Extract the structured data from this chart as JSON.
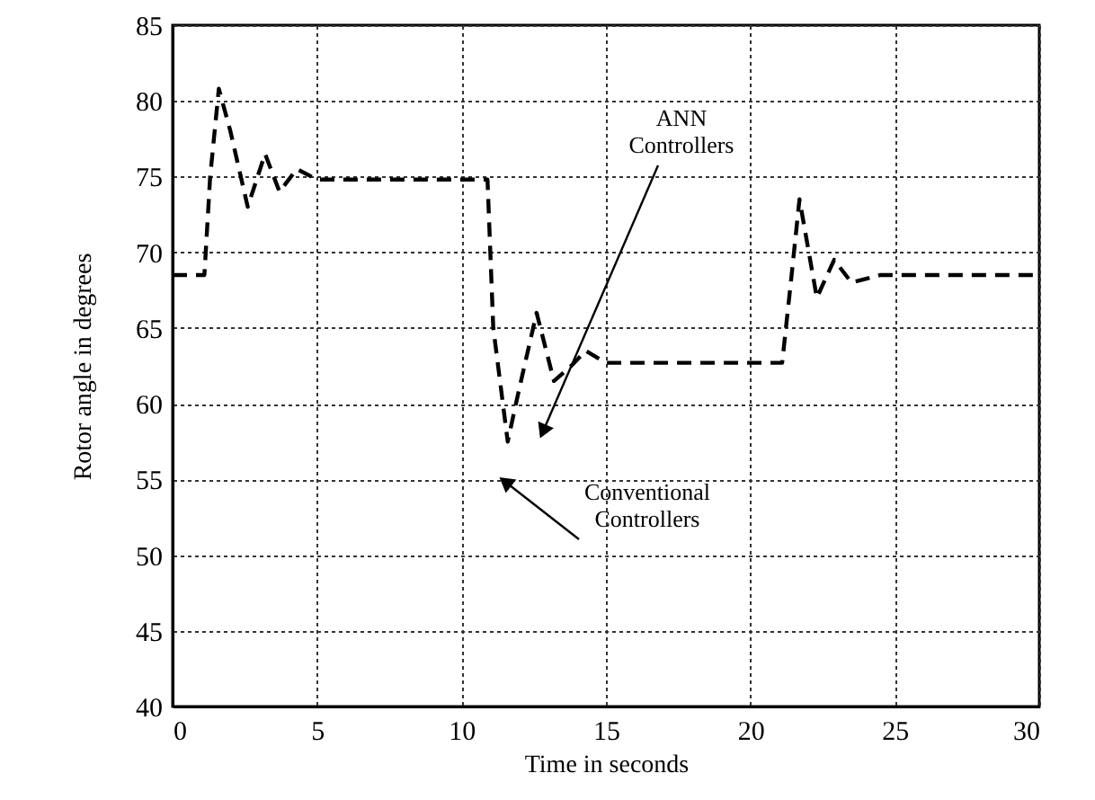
{
  "chart_data": {
    "type": "line",
    "xlabel": "Time in seconds",
    "ylabel": "Rotor angle in degrees",
    "x": [
      0,
      1.1,
      1.3,
      1.6,
      2.0,
      2.6,
      3.2,
      3.7,
      4.3,
      5.0,
      10.9,
      11.1,
      11.6,
      12.0,
      12.6,
      13.2,
      13.8,
      14.3,
      15.0,
      21.1,
      21.4,
      21.7,
      22.3,
      22.9,
      23.5,
      24.5,
      30
    ],
    "series": [
      {
        "color": "#000000",
        "values": [
          68.5,
          68.5,
          75,
          80.8,
          78,
          73,
          76.5,
          74,
          75.5,
          74.8,
          74.8,
          65,
          57.5,
          61,
          66,
          61.5,
          62.5,
          63.5,
          62.7,
          62.7,
          68,
          73.5,
          67,
          69.5,
          68,
          68.5,
          68.5
        ]
      }
    ],
    "xlim": [
      0,
      30
    ],
    "xticks": [
      0,
      5,
      10,
      15,
      20,
      25,
      30
    ],
    "ylim": [
      40,
      85
    ],
    "yticks": [
      40,
      45,
      50,
      55,
      60,
      65,
      70,
      75,
      80,
      85
    ],
    "grid": true,
    "line_style": "dashed",
    "marker": "none",
    "annotations": [
      "ANN\nControllers",
      "Conventional\nControllers"
    ]
  }
}
